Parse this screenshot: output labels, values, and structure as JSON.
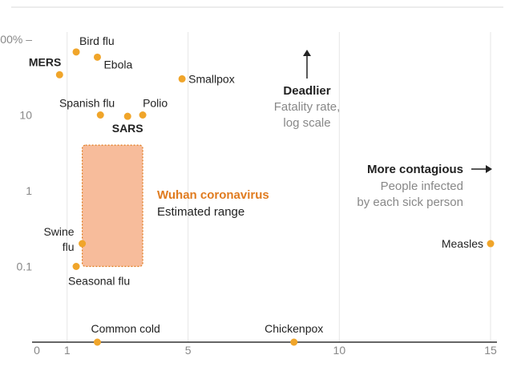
{
  "chart_data": {
    "type": "scatter",
    "x_axis": {
      "scale": "linear",
      "range": [
        0,
        15
      ],
      "ticks": [
        0,
        1,
        5,
        10,
        15
      ]
    },
    "y_axis": {
      "scale": "log",
      "range": [
        0.01,
        100
      ],
      "ticks": [
        {
          "value": 100,
          "label": "100% –"
        },
        {
          "value": 10,
          "label": "10"
        },
        {
          "value": 1,
          "label": "1"
        },
        {
          "value": 0.1,
          "label": "0.1"
        }
      ]
    },
    "points": [
      {
        "name": "Bird flu",
        "x": 1.3,
        "y": 68,
        "bold": false
      },
      {
        "name": "Ebola",
        "x": 2.0,
        "y": 58,
        "bold": false
      },
      {
        "name": "MERS",
        "x": 0.75,
        "y": 34,
        "bold": true
      },
      {
        "name": "Smallpox",
        "x": 4.8,
        "y": 30,
        "bold": false
      },
      {
        "name": "Spanish flu",
        "x": 2.1,
        "y": 10,
        "bold": false
      },
      {
        "name": "Polio",
        "x": 3.5,
        "y": 10,
        "bold": false
      },
      {
        "name": "SARS",
        "x": 3.0,
        "y": 9.6,
        "bold": true
      },
      {
        "name": "Swine flu",
        "x": 1.5,
        "y": 0.2,
        "bold": false
      },
      {
        "name": "Seasonal flu",
        "x": 1.3,
        "y": 0.1,
        "bold": false
      },
      {
        "name": "Measles",
        "x": 15,
        "y": 0.2,
        "bold": false
      },
      {
        "name": "Common cold",
        "x": 2.0,
        "y": 0.01,
        "bold": false
      },
      {
        "name": "Chickenpox",
        "x": 8.5,
        "y": 0.01,
        "bold": false
      }
    ],
    "range_region": {
      "name": "Wuhan coronavirus",
      "subtitle": "Estimated range",
      "x": [
        1.5,
        3.5
      ],
      "y": [
        0.1,
        4
      ],
      "color": "#f4a679"
    },
    "annotations": {
      "deadlier": {
        "title": "Deadlier",
        "lines": [
          "Fatality rate,",
          "log scale"
        ]
      },
      "contagious": {
        "title": "More contagious",
        "lines": [
          "People infected",
          "by each sick person"
        ]
      }
    },
    "colors": {
      "point": "#f0a52a",
      "accent": "#e07b1f",
      "axis": "#333333",
      "grid": "#e6e6e6",
      "tick": "#888888"
    }
  }
}
